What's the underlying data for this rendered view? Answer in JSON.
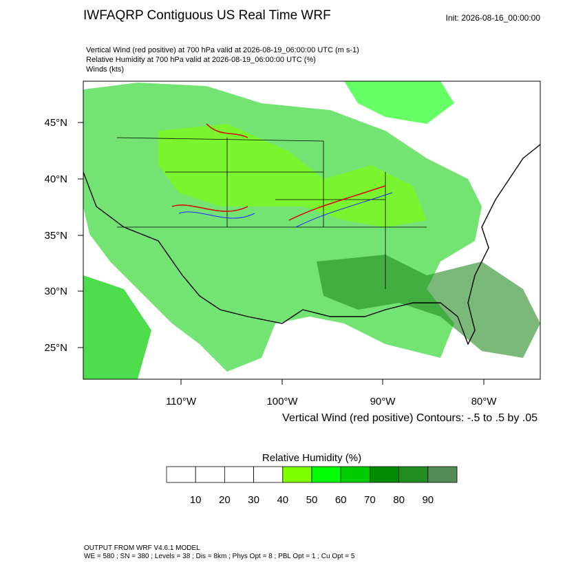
{
  "header": {
    "title": "IWFAQRP Contiguous US Real Time WRF",
    "init": "Init: 2026-08-16_00:00:00"
  },
  "subtitles": [
    "Vertical Wind (red positive) at 700 hPa valid at 2026-08-19_06:00:00 UTC   (m s-1)",
    "Relative Humidity at 700 hPa valid at 2026-08-19_06:00:00 UTC   (%)",
    "Winds   (kts)"
  ],
  "map": {
    "lat_labels": [
      "45°N",
      "40°N",
      "35°N",
      "30°N",
      "25°N"
    ],
    "lon_labels": [
      "110°W",
      "100°W",
      "90°W",
      "80°W"
    ],
    "contour_note": "Vertical Wind (red positive) Contours: -.5 to .5 by .05"
  },
  "colorbar": {
    "title": "Relative Humidity  (%)",
    "labels": [
      "10",
      "20",
      "30",
      "40",
      "50",
      "60",
      "70",
      "80",
      "90"
    ],
    "colors": [
      "#ffffff",
      "#ffffff",
      "#ffffff",
      "#ffffff",
      "#7fff00",
      "#00ff00",
      "#00cd00",
      "#008b00",
      "#228b22",
      "#548b54"
    ]
  },
  "footer": [
    "OUTPUT FROM WRF V4.6.1 MODEL",
    "WE = 580 ; SN = 380 ; Levels = 38 ; Dis = 8km ; Phys Opt = 8 ; PBL Opt = 1 ; Cu Opt = 5"
  ]
}
